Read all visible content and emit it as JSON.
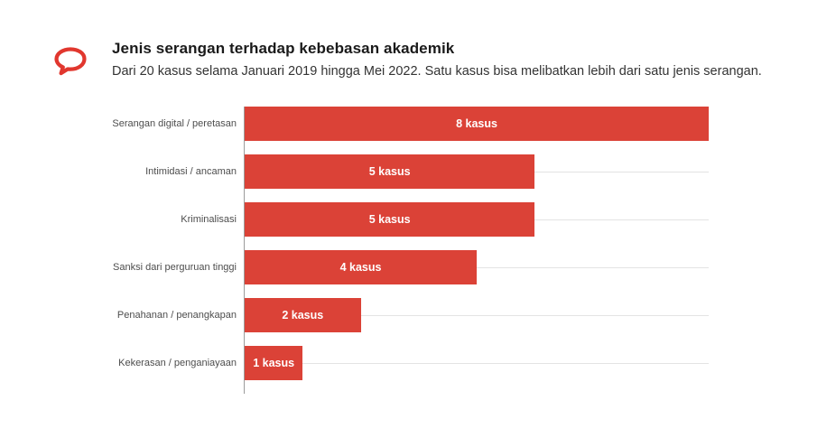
{
  "header": {
    "title": "Jenis serangan terhadap kebebasan akademik",
    "subtitle": "Dari 20 kasus selama Januari 2019 hingga Mei 2022. Satu kasus bisa melibatkan lebih dari satu jenis serangan."
  },
  "logo": {
    "icon": "speech-bubble-icon",
    "color": "#e1372e"
  },
  "chart_data": {
    "type": "bar",
    "orientation": "horizontal",
    "title": "Jenis serangan terhadap kebebasan akademik",
    "subtitle": "Dari 20 kasus selama Januari 2019 hingga Mei 2022. Satu kasus bisa melibatkan lebih dari satu jenis serangan.",
    "categories": [
      "Serangan digital / peretasan",
      "Intimidasi / ancaman",
      "Kriminalisasi",
      "Sanksi dari perguruan tinggi",
      "Penahanan / penangkapan",
      "Kekerasan / penganiayaan"
    ],
    "values": [
      8,
      5,
      5,
      4,
      2,
      1
    ],
    "value_labels": [
      "8 kasus",
      "5 kasus",
      "5 kasus",
      "4 kasus",
      "2 kasus",
      "1 kasus"
    ],
    "xlim": [
      0,
      8
    ],
    "bar_color": "#db4237",
    "value_label_color": "#ffffff",
    "grid": true,
    "legend": false
  }
}
